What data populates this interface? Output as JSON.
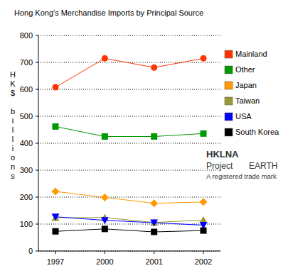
{
  "chart_data": {
    "type": "line",
    "title": "Hong Kong's Merchandise Imports by Principal Source",
    "y_label": "HK$ billions",
    "categories": [
      "1997",
      "2000",
      "2001",
      "2002"
    ],
    "series": [
      {
        "name": "Mainland",
        "color": "#ff3300",
        "marker": "circle",
        "values": [
          608,
          715,
          681,
          715
        ]
      },
      {
        "name": "Other",
        "color": "#009900",
        "marker": "square",
        "values": [
          462,
          425,
          425,
          436
        ]
      },
      {
        "name": "Japan",
        "color": "#ff9900",
        "marker": "diamond",
        "values": [
          221,
          199,
          177,
          182
        ]
      },
      {
        "name": "Taiwan",
        "color": "#999933",
        "marker": "triangle",
        "values": [
          124,
          124,
          106,
          115
        ]
      },
      {
        "name": "USA",
        "color": "#0000ff",
        "marker": "triangle-down",
        "values": [
          127,
          114,
          105,
          96
        ]
      },
      {
        "name": "South Korea",
        "color": "#000000",
        "marker": "square",
        "values": [
          73,
          82,
          71,
          76
        ]
      }
    ],
    "ylim": [
      0,
      800
    ],
    "yticks": [
      0,
      100,
      200,
      300,
      400,
      500,
      600,
      700,
      800
    ],
    "grid": true,
    "legend": "right",
    "annotations": [
      "HKLNA",
      "Project",
      "EARTH",
      "A registered trade mark"
    ]
  }
}
